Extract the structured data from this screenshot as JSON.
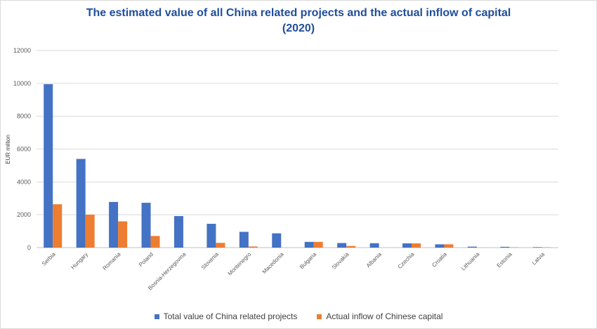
{
  "chart_data": {
    "type": "bar",
    "title": "The estimated value of all China related projects and the actual inflow of capital",
    "subtitle": "(2020)",
    "xlabel": "",
    "ylabel": "EUR million",
    "ylim": [
      0,
      12000
    ],
    "yticks": [
      "0",
      "2000",
      "4000",
      "6000",
      "8000",
      "10000",
      "12000"
    ],
    "grid": true,
    "legend_position": "bottom",
    "categories": [
      "Serbia",
      "Hungary",
      "Romania",
      "Poland",
      "Bosnia-Herzegovina",
      "Slovenia",
      "Montenegro",
      "Macedonia",
      "Bulgaria",
      "Slovakia",
      "Albania",
      "Czechia",
      "Croatia",
      "Lithuania",
      "Estonia",
      "Latvia"
    ],
    "series": [
      {
        "name": "Total value of China related projects",
        "color": "#4472c4",
        "values": [
          9950,
          5400,
          2780,
          2730,
          1920,
          1450,
          960,
          870,
          350,
          280,
          270,
          260,
          200,
          60,
          50,
          30
        ]
      },
      {
        "name": "Actual inflow of Chinese capital",
        "color": "#ed7d31",
        "values": [
          2640,
          2010,
          1600,
          710,
          0,
          290,
          70,
          0,
          350,
          100,
          0,
          260,
          200,
          0,
          20,
          20
        ]
      }
    ]
  }
}
